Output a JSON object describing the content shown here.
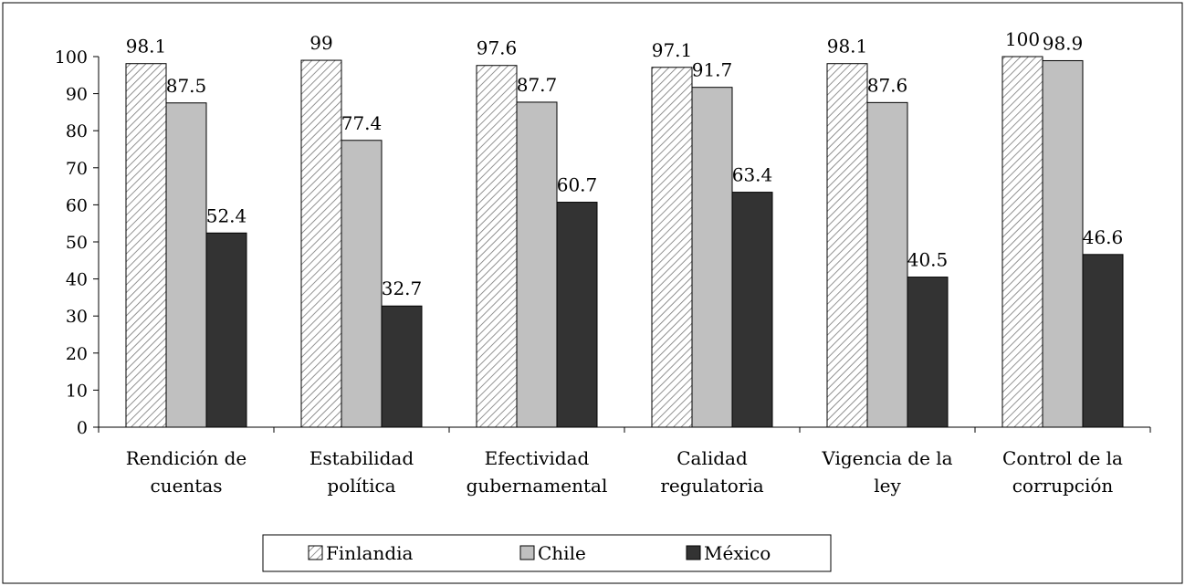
{
  "chart_data": {
    "type": "bar",
    "categories": [
      [
        "Rendición de",
        "cuentas"
      ],
      [
        "Estabilidad",
        "política"
      ],
      [
        "Efectividad",
        "gubernamental"
      ],
      [
        "Calidad",
        "regulatoria"
      ],
      [
        "Vigencia de la",
        "ley"
      ],
      [
        "Control de la",
        "corrupción"
      ]
    ],
    "series": [
      {
        "name": "Finlandia",
        "values": [
          98.1,
          99,
          97.6,
          97.1,
          98.1,
          100
        ],
        "fill": "hatch"
      },
      {
        "name": "Chile",
        "values": [
          87.5,
          77.4,
          87.7,
          91.7,
          87.6,
          98.9
        ],
        "fill": "#c0c0c0"
      },
      {
        "name": "México",
        "values": [
          52.4,
          32.7,
          60.7,
          63.4,
          40.5,
          46.6
        ],
        "fill": "#333333"
      }
    ],
    "value_labels": [
      [
        "98.1",
        "99",
        "97.6",
        "97.1",
        "98.1",
        "100"
      ],
      [
        "87.5",
        "77.4",
        "87.7",
        "91.7",
        "87.6",
        "98.9"
      ],
      [
        "52.4",
        "32.7",
        "60.7",
        "63.4",
        "40.5",
        "46.6"
      ]
    ],
    "ylim": [
      0,
      100
    ],
    "yticks": [
      0,
      10,
      20,
      30,
      40,
      50,
      60,
      70,
      80,
      90,
      100
    ],
    "title": "",
    "xlabel": "",
    "ylabel": "",
    "grid": false,
    "legend_position": "bottom"
  }
}
